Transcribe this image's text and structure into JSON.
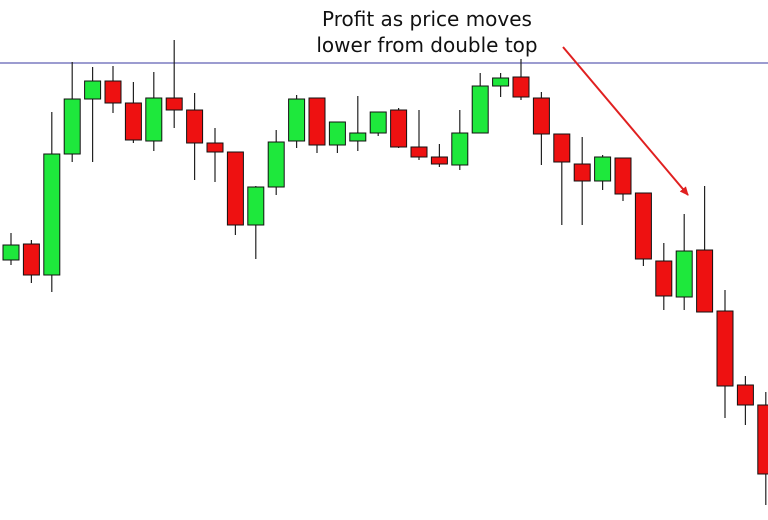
{
  "chart_data": {
    "type": "candlestick",
    "annotation": [
      "Profit as price moves",
      "lower from double top"
    ],
    "ylim": [
      0,
      520
    ],
    "up_color": "#1ee83c",
    "down_color": "#ee1111",
    "hline": {
      "value": 457,
      "color": "#3a3aa0"
    },
    "arrow_color": "#e02020",
    "open": [
      260,
      276,
      245,
      366,
      421,
      439,
      417,
      379,
      422,
      410,
      377,
      368,
      295,
      333,
      379,
      422,
      375,
      379,
      387,
      410,
      373,
      363,
      355,
      387,
      434,
      443,
      422,
      386,
      356,
      339,
      362,
      327,
      259,
      223,
      270,
      209,
      135,
      115
    ],
    "high": [
      287,
      280,
      408,
      458,
      453,
      454,
      438,
      448,
      480,
      427,
      392,
      368,
      334,
      390,
      425,
      422,
      398,
      424,
      408,
      412,
      410,
      376,
      410,
      447,
      447,
      461,
      428,
      386,
      383,
      365,
      362,
      327,
      277,
      306,
      334,
      230,
      144,
      128
    ],
    "low": [
      255,
      237,
      228,
      358,
      358,
      407,
      377,
      369,
      392,
      340,
      338,
      285,
      261,
      325,
      372,
      367,
      367,
      369,
      384,
      372,
      360,
      353,
      350,
      387,
      423,
      420,
      355,
      295,
      295,
      330,
      319,
      254,
      210,
      210,
      208,
      102,
      95,
      15
    ],
    "close": [
      275,
      245,
      366,
      421,
      439,
      417,
      380,
      422,
      410,
      377,
      368,
      295,
      333,
      378,
      421,
      375,
      398,
      387,
      408,
      373,
      363,
      356,
      387,
      434,
      442,
      423,
      386,
      358,
      339,
      363,
      326,
      261,
      224,
      269,
      208,
      134,
      115,
      46
    ]
  }
}
